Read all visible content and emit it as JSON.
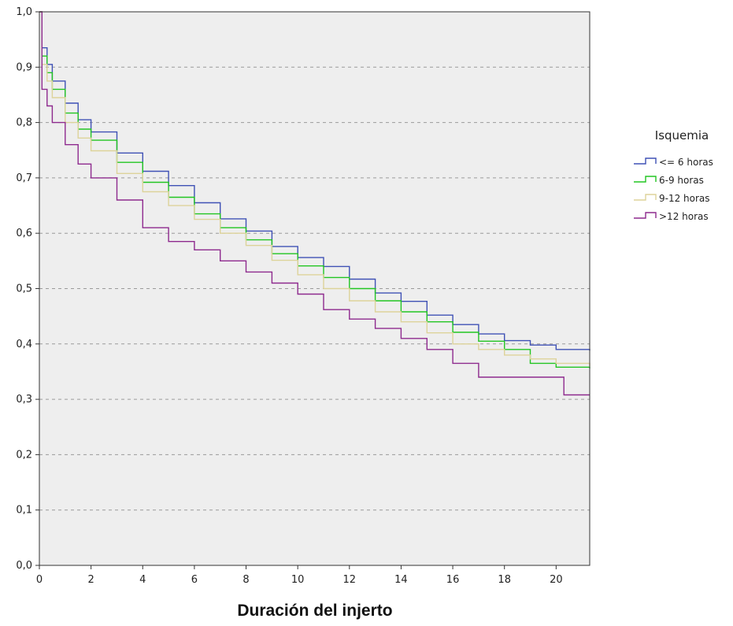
{
  "chart_data": {
    "type": "line",
    "subtype": "kaplan-meier step curves",
    "xlabel": "Duración del injerto",
    "ylabel": "",
    "xlim": [
      0,
      21.3
    ],
    "ylim": [
      0,
      1
    ],
    "x_ticks": [
      "0",
      "2",
      "4",
      "6",
      "8",
      "10",
      "12",
      "14",
      "16",
      "18",
      "20"
    ],
    "y_ticks": [
      "0,0",
      "0,1",
      "0,2",
      "0,3",
      "0,4",
      "0,5",
      "0,6",
      "0,7",
      "0,8",
      "0,9",
      "1,0"
    ],
    "grid": "horizontal dashed",
    "plot_background": "#eeeeee",
    "legend": {
      "title": "Isquemia",
      "placement": "right"
    },
    "series": [
      {
        "name": "<= 6 horas",
        "color": "#3f51b5",
        "points": [
          [
            0,
            1.0
          ],
          [
            0.1,
            0.935
          ],
          [
            0.3,
            0.905
          ],
          [
            0.5,
            0.875
          ],
          [
            1,
            0.835
          ],
          [
            1.5,
            0.805
          ],
          [
            2,
            0.783
          ],
          [
            3,
            0.745
          ],
          [
            4,
            0.712
          ],
          [
            5,
            0.686
          ],
          [
            6,
            0.655
          ],
          [
            7,
            0.626
          ],
          [
            8,
            0.604
          ],
          [
            9,
            0.576
          ],
          [
            10,
            0.556
          ],
          [
            11,
            0.54
          ],
          [
            12,
            0.517
          ],
          [
            13,
            0.492
          ],
          [
            14,
            0.477
          ],
          [
            15,
            0.452
          ],
          [
            16,
            0.435
          ],
          [
            17,
            0.418
          ],
          [
            18,
            0.406
          ],
          [
            19,
            0.398
          ],
          [
            20,
            0.39
          ],
          [
            21.3,
            0.388
          ]
        ]
      },
      {
        "name": "6-9 horas",
        "color": "#22c522",
        "points": [
          [
            0,
            1.0
          ],
          [
            0.1,
            0.92
          ],
          [
            0.3,
            0.89
          ],
          [
            0.5,
            0.86
          ],
          [
            1,
            0.817
          ],
          [
            1.5,
            0.788
          ],
          [
            2,
            0.768
          ],
          [
            3,
            0.728
          ],
          [
            4,
            0.692
          ],
          [
            5,
            0.665
          ],
          [
            6,
            0.635
          ],
          [
            7,
            0.61
          ],
          [
            8,
            0.588
          ],
          [
            9,
            0.563
          ],
          [
            10,
            0.541
          ],
          [
            11,
            0.52
          ],
          [
            12,
            0.5
          ],
          [
            13,
            0.478
          ],
          [
            14,
            0.458
          ],
          [
            15,
            0.44
          ],
          [
            16,
            0.421
          ],
          [
            17,
            0.405
          ],
          [
            18,
            0.39
          ],
          [
            19,
            0.365
          ],
          [
            20,
            0.358
          ],
          [
            21.3,
            0.356
          ]
        ]
      },
      {
        "name": "9-12 horas",
        "color": "#ddd39a",
        "points": [
          [
            0,
            1.0
          ],
          [
            0.1,
            0.905
          ],
          [
            0.3,
            0.875
          ],
          [
            0.5,
            0.845
          ],
          [
            1,
            0.8
          ],
          [
            1.5,
            0.772
          ],
          [
            2,
            0.749
          ],
          [
            3,
            0.708
          ],
          [
            4,
            0.675
          ],
          [
            5,
            0.65
          ],
          [
            6,
            0.625
          ],
          [
            7,
            0.6
          ],
          [
            8,
            0.578
          ],
          [
            9,
            0.551
          ],
          [
            10,
            0.525
          ],
          [
            11,
            0.5
          ],
          [
            12,
            0.478
          ],
          [
            13,
            0.458
          ],
          [
            14,
            0.44
          ],
          [
            15,
            0.42
          ],
          [
            16,
            0.4
          ],
          [
            17,
            0.39
          ],
          [
            18,
            0.38
          ],
          [
            19,
            0.373
          ],
          [
            20,
            0.365
          ],
          [
            21.3,
            0.36
          ]
        ]
      },
      {
        "name": ">12 horas",
        "color": "#8e2a8e",
        "points": [
          [
            0,
            1.0
          ],
          [
            0.1,
            0.86
          ],
          [
            0.3,
            0.83
          ],
          [
            0.5,
            0.8
          ],
          [
            1,
            0.76
          ],
          [
            1.5,
            0.725
          ],
          [
            2,
            0.7
          ],
          [
            3,
            0.66
          ],
          [
            4,
            0.61
          ],
          [
            5,
            0.585
          ],
          [
            6,
            0.57
          ],
          [
            7,
            0.55
          ],
          [
            8,
            0.53
          ],
          [
            9,
            0.51
          ],
          [
            10,
            0.49
          ],
          [
            11,
            0.462
          ],
          [
            12,
            0.445
          ],
          [
            13,
            0.428
          ],
          [
            14,
            0.41
          ],
          [
            15,
            0.39
          ],
          [
            16,
            0.365
          ],
          [
            17,
            0.34
          ],
          [
            18,
            0.34
          ],
          [
            19,
            0.34
          ],
          [
            20,
            0.34
          ],
          [
            20.3,
            0.308
          ],
          [
            21.3,
            0.308
          ]
        ]
      }
    ]
  }
}
